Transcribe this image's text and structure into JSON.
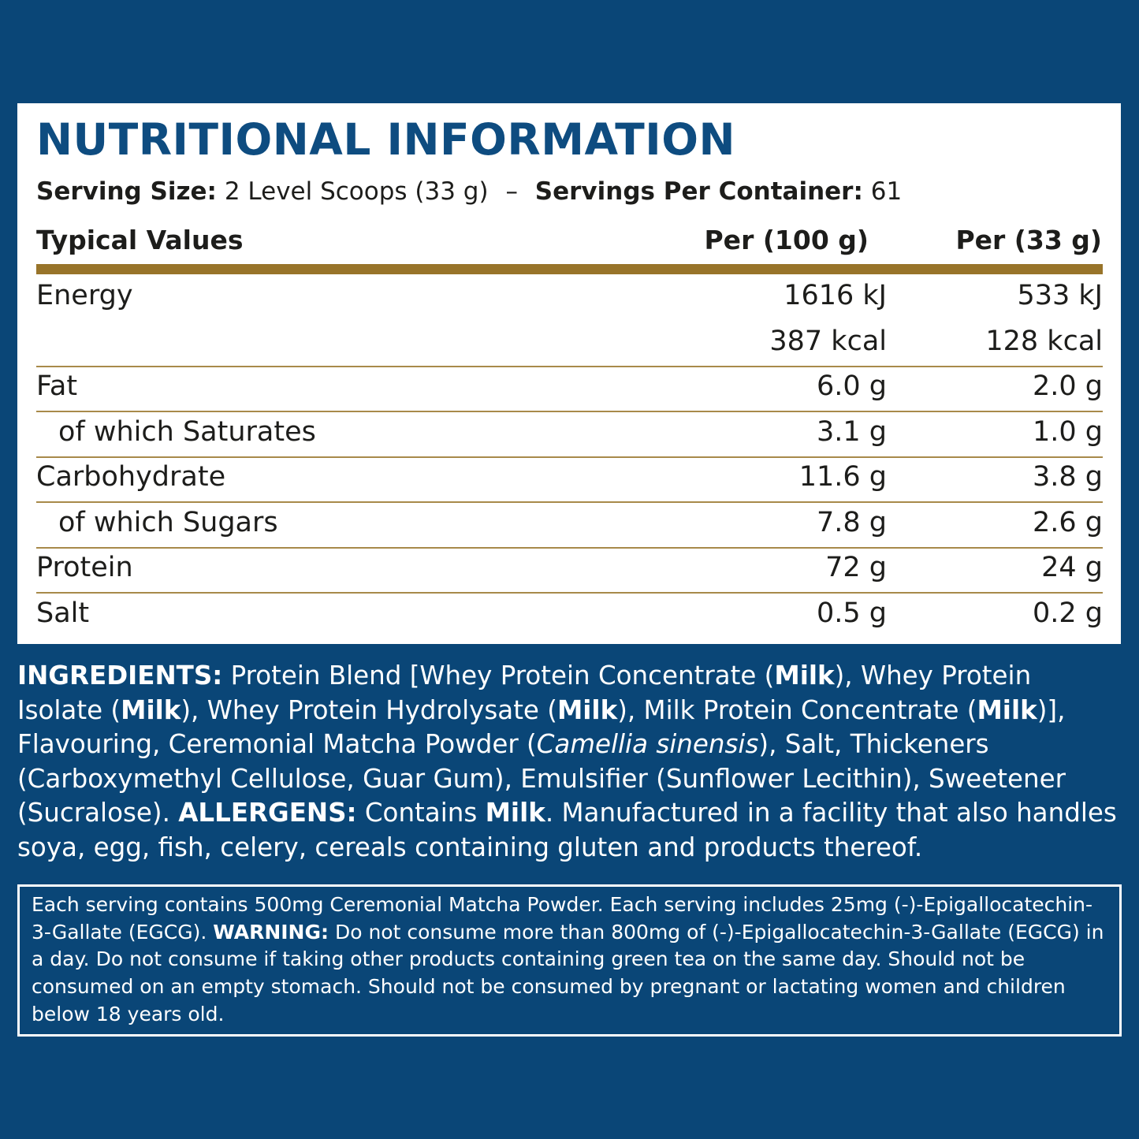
{
  "label": {
    "title": "NUTRITIONAL INFORMATION",
    "serving_size_label": "Serving Size:",
    "serving_size_value": "2 Level Scoops (33 g)",
    "separator": "–",
    "servings_per_container_label": "Servings Per Container:",
    "servings_per_container_value": "61",
    "colors": {
      "background": "#0a4677",
      "title": "#0e4c80",
      "rule": "#98742a"
    }
  },
  "table": {
    "headers": [
      "Typical Values",
      "Per (100 g)",
      "Per (33 g)"
    ],
    "rows": [
      {
        "label": "Energy",
        "per100": "1616 kJ",
        "perServing": "533 kJ",
        "sub": false,
        "rule": false
      },
      {
        "label": "",
        "per100": "387 kcal",
        "perServing": "128 kcal",
        "sub": false,
        "rule": true
      },
      {
        "label": "Fat",
        "per100": "6.0 g",
        "perServing": "2.0 g",
        "sub": false,
        "rule": true
      },
      {
        "label": "of which Saturates",
        "per100": "3.1 g",
        "perServing": "1.0 g",
        "sub": true,
        "rule": true
      },
      {
        "label": "Carbohydrate",
        "per100": "11.6 g",
        "perServing": "3.8 g",
        "sub": false,
        "rule": true
      },
      {
        "label": "of which Sugars",
        "per100": "7.8 g",
        "perServing": "2.6 g",
        "sub": true,
        "rule": true
      },
      {
        "label": "Protein",
        "per100": "72 g",
        "perServing": "24 g",
        "sub": false,
        "rule": true
      },
      {
        "label": "Salt",
        "per100": "0.5 g",
        "perServing": "0.2 g",
        "sub": false,
        "rule": false
      }
    ]
  },
  "ingredients": [
    {
      "t": "INGREDIENTS:",
      "s": "b"
    },
    {
      "t": " Protein Blend [Whey Protein Concentrate (",
      "s": ""
    },
    {
      "t": "Milk",
      "s": "b"
    },
    {
      "t": "), Whey Protein Isolate (",
      "s": ""
    },
    {
      "t": "Milk",
      "s": "b"
    },
    {
      "t": "), Whey Protein Hydrolysate (",
      "s": ""
    },
    {
      "t": "Milk",
      "s": "b"
    },
    {
      "t": "), Milk Protein Concentrate (",
      "s": ""
    },
    {
      "t": "Milk",
      "s": "b"
    },
    {
      "t": ")], Flavouring, Ceremonial Matcha Powder (",
      "s": ""
    },
    {
      "t": "Camellia sinensis",
      "s": "i"
    },
    {
      "t": "), Salt, Thickeners (Carboxymethyl Cellulose, Guar Gum), Emulsifier (Sunflower Lecithin), Sweetener (Sucralose). ",
      "s": ""
    },
    {
      "t": "ALLERGENS:",
      "s": "b"
    },
    {
      "t": " Contains ",
      "s": ""
    },
    {
      "t": "Milk",
      "s": "b"
    },
    {
      "t": ". Manufactured in a facility that also handles soya, egg, fish, celery, cereals containing gluten and products thereof.",
      "s": ""
    }
  ],
  "warning": [
    {
      "t": "Each serving contains 500mg Ceremonial Matcha Powder. Each serving includes 25mg (-)-Epigallocatechin-3-Gallate (EGCG). ",
      "s": ""
    },
    {
      "t": "WARNING:",
      "s": "b"
    },
    {
      "t": " Do not consume more than 800mg of (-)-Epigallocatechin-3-Gallate (EGCG) in a day. Do not consume if taking other products containing green tea on the same day. Should not be consumed on an empty stomach. Should not be consumed by pregnant or lactating women and children below 18 years old.",
      "s": ""
    }
  ]
}
